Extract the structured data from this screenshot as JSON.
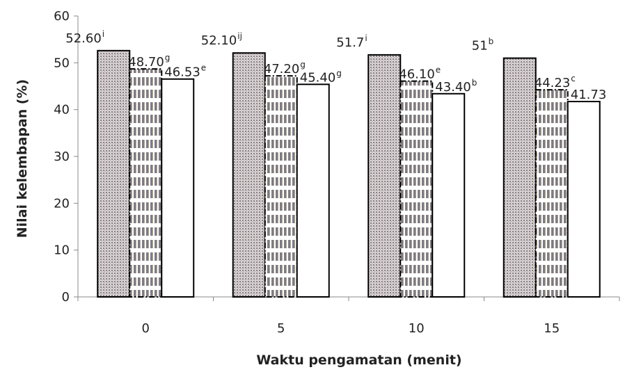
{
  "chart_data": {
    "type": "bar",
    "xlabel": "Waktu pengamatan (menit)",
    "ylabel": "Nilai kelembapan (%)",
    "ylim": [
      0,
      60
    ],
    "yticks": [
      "0",
      "10",
      "20",
      "30",
      "40",
      "50",
      "60"
    ],
    "categories": [
      "0",
      "5",
      "10",
      "15"
    ],
    "grid": false,
    "legend": "none",
    "series": [
      {
        "values": [
          52.6,
          52.1,
          51.7,
          51
        ],
        "labels": [
          {
            "num": "52.60",
            "sup": "i"
          },
          {
            "num": "52.10",
            "sup": "ij"
          },
          {
            "num": "51.7",
            "sup": "i"
          },
          {
            "num": "51",
            "sup": "b"
          }
        ],
        "fill": "dotted-gray",
        "stroke": "#000000",
        "border": "solid"
      },
      {
        "values": [
          48.7,
          47.2,
          46.1,
          44.23
        ],
        "labels": [
          {
            "num": "48.70",
            "sup": "g"
          },
          {
            "num": "47.20",
            "sup": "g"
          },
          {
            "num": "46.10",
            "sup": "e"
          },
          {
            "num": "44.23",
            "sup": "c"
          }
        ],
        "fill": "striped-gray",
        "stroke": "#000000",
        "border": "dash-dot"
      },
      {
        "values": [
          46.53,
          45.4,
          43.4,
          41.73
        ],
        "labels": [
          {
            "num": "46.53",
            "sup": "e"
          },
          {
            "num": "45.40",
            "sup": "g"
          },
          {
            "num": "43.40",
            "sup": "b"
          },
          {
            "num": "41.73",
            "sup": ""
          }
        ],
        "fill": "#ffffff",
        "stroke": "#000000",
        "border": "solid"
      }
    ]
  }
}
